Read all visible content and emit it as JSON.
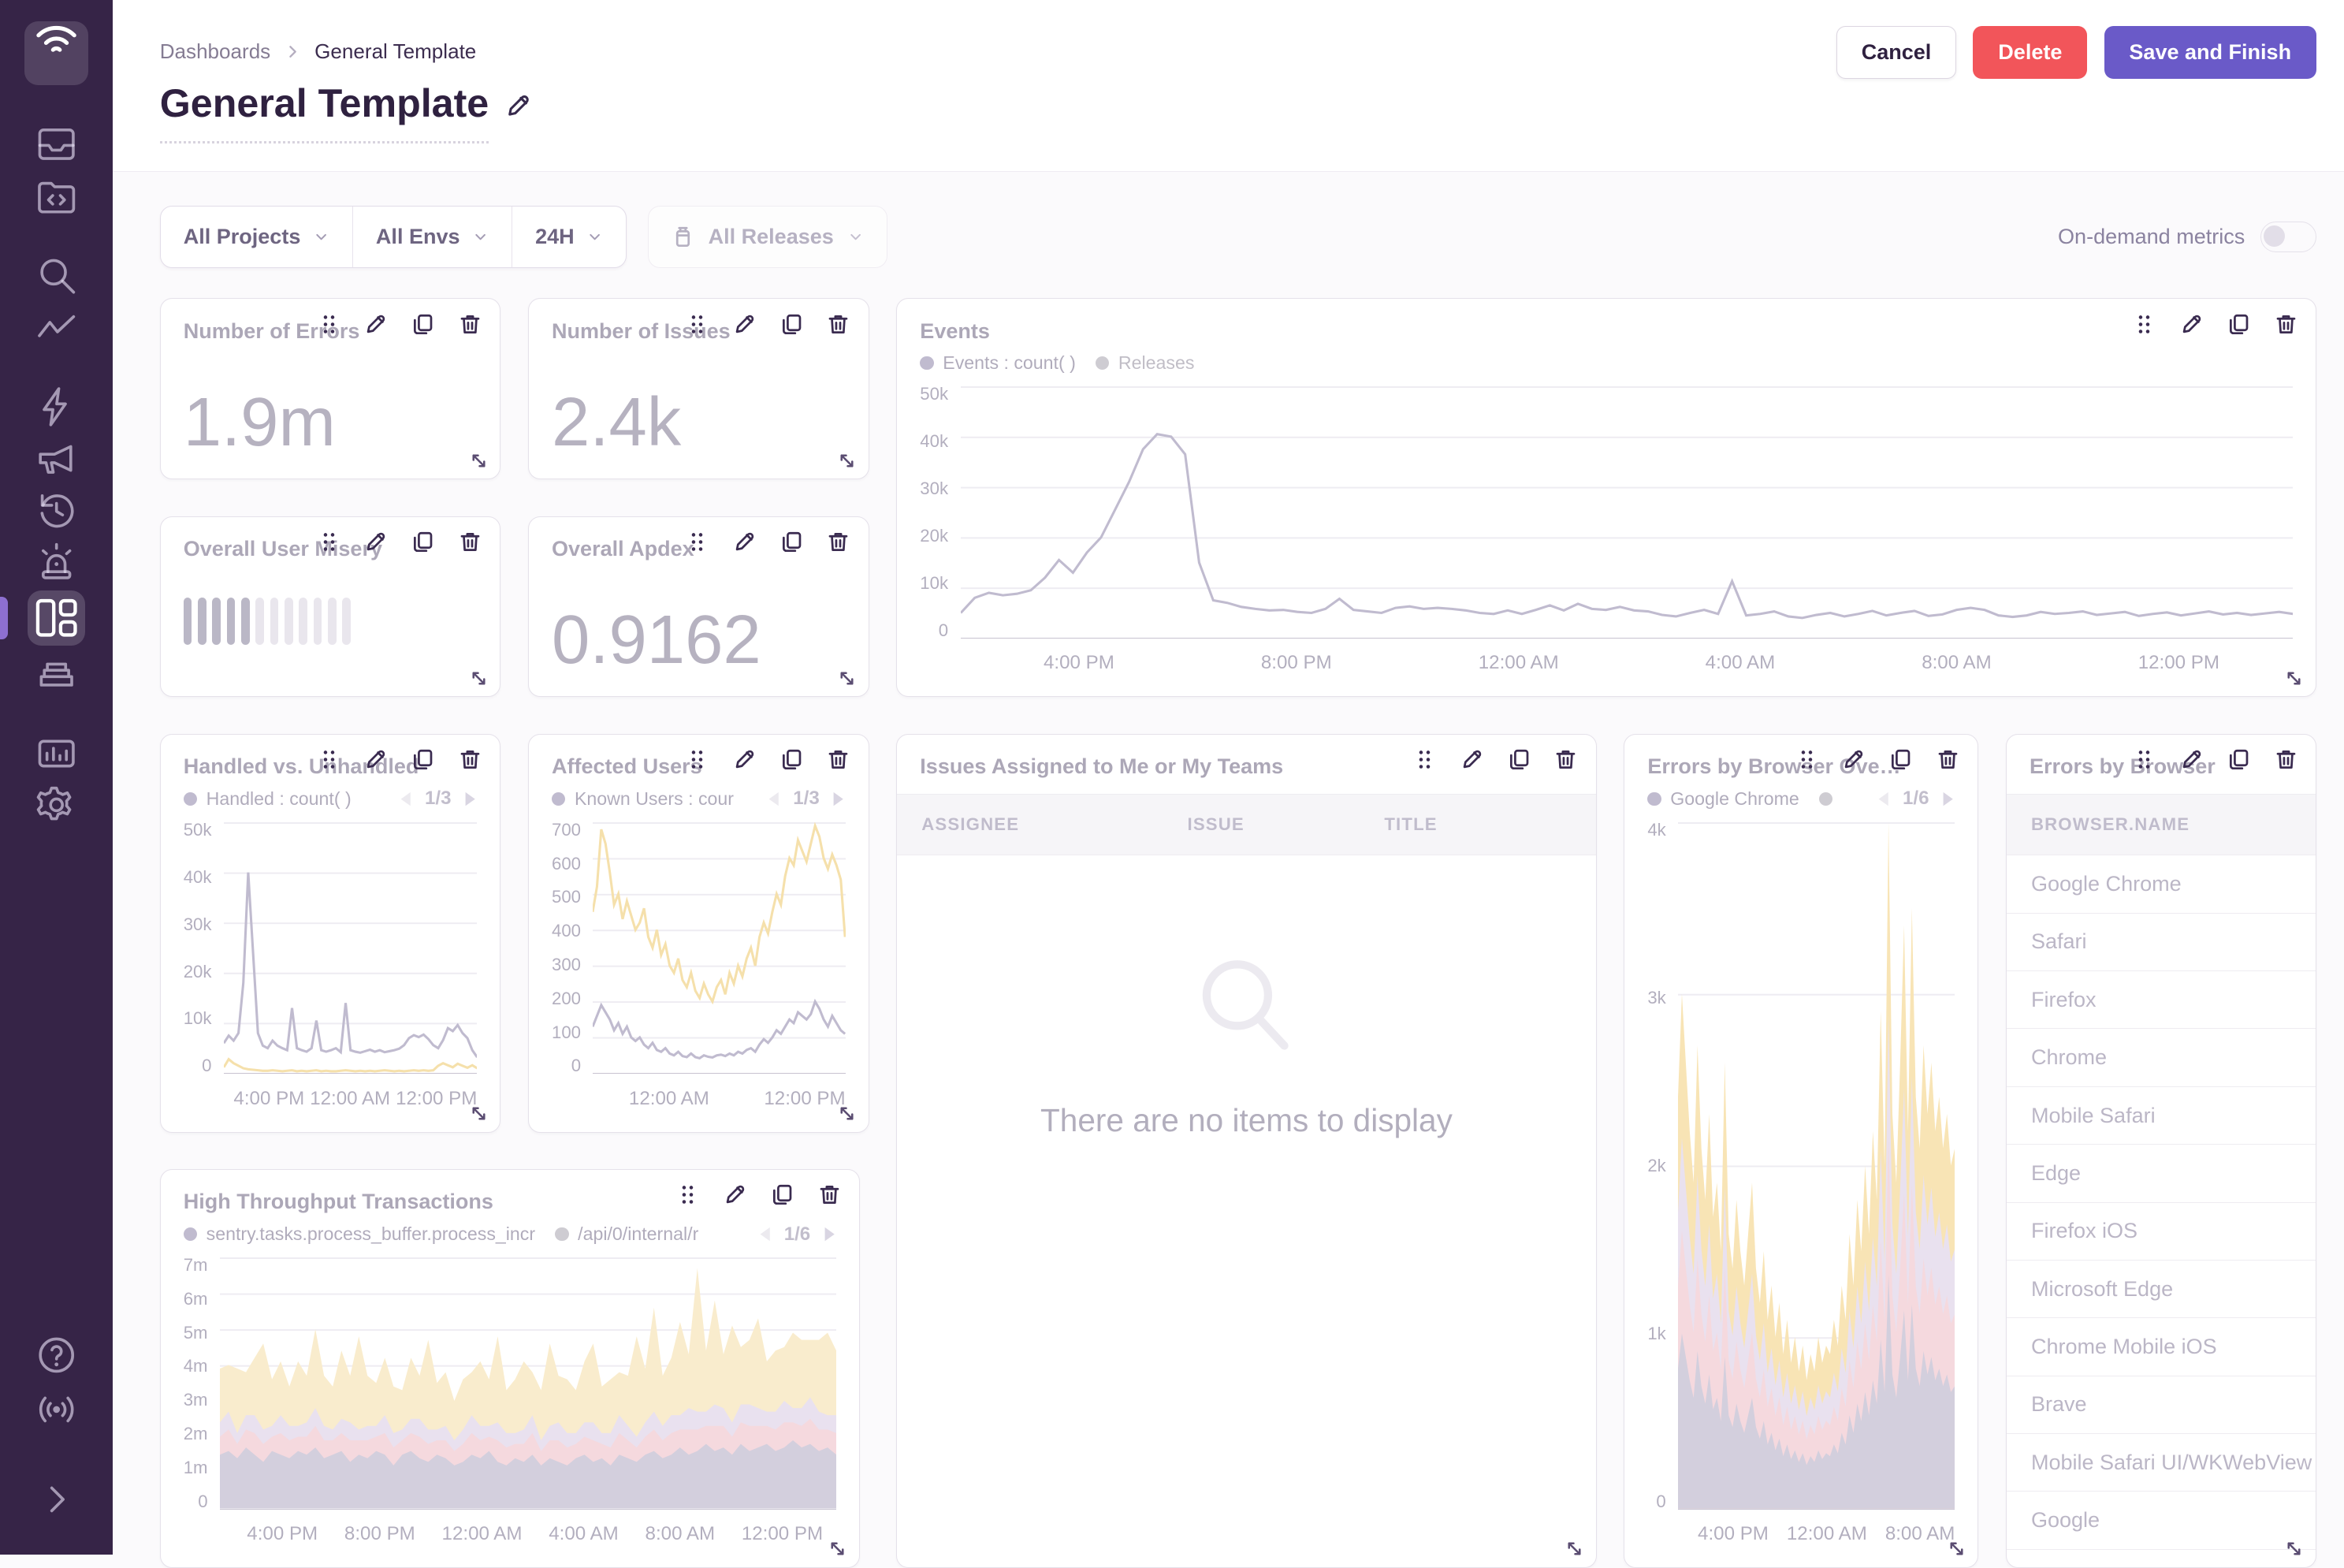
{
  "app": {
    "name": "Sentry"
  },
  "colors": {
    "sidebar_bg": "#362447",
    "accent_purple": "#6a5ac8",
    "danger_red": "#f2555a",
    "chart_purple": "#6c5f8f",
    "chart_yellow": "#e9b63a",
    "chart_pink": "#e9a5b2",
    "chart_lavender": "#cbb9da",
    "chart_gray": "#988eaf"
  },
  "sidebar": {
    "icons": [
      "sentry-logo",
      "issues",
      "projects",
      "explore-search",
      "traces",
      "lightning",
      "feedback-megaphone",
      "replays-history",
      "alerts-siren",
      "dashboards",
      "releases-stack",
      "stats",
      "settings-gear",
      "help",
      "broadcast",
      "collapse"
    ],
    "active": "dashboards"
  },
  "header": {
    "breadcrumb": {
      "root": "Dashboards",
      "current": "General Template"
    },
    "title": "General Template",
    "buttons": {
      "cancel": "Cancel",
      "delete": "Delete",
      "save": "Save and Finish"
    }
  },
  "filters": {
    "projects": "All Projects",
    "environments": "All Envs",
    "time_range": "24H",
    "releases": "All Releases",
    "on_demand_label": "On-demand metrics",
    "on_demand_enabled": false
  },
  "widgets": {
    "number_of_errors": {
      "title": "Number of Errors",
      "value": "1.9m"
    },
    "number_of_issues": {
      "title": "Number of Issues",
      "value": "2.4k"
    },
    "events": {
      "title": "Events",
      "legend": [
        {
          "label": "Events : count( )",
          "color": "#6c5f8f"
        },
        {
          "label": "Releases",
          "color": "#8d8796"
        }
      ]
    },
    "overall_user_misery": {
      "title": "Overall User Misery"
    },
    "overall_apdex": {
      "title": "Overall Apdex",
      "value": "0.9162"
    },
    "handled_vs_unhandled": {
      "title": "Handled vs. Unhandled",
      "legend": [
        {
          "label": "Handled : count( )",
          "color": "#6c5f8f"
        }
      ],
      "pagination": "1/3"
    },
    "affected_users": {
      "title": "Affected Users",
      "legend": [
        {
          "label": "Known Users : cour",
          "color": "#6c5f8f"
        }
      ],
      "pagination": "1/3"
    },
    "issues_assigned": {
      "title": "Issues Assigned to Me or My Teams",
      "columns": [
        "ASSIGNEE",
        "ISSUE",
        "TITLE"
      ],
      "empty_message": "There are no items to display"
    },
    "errors_by_browser_overlay": {
      "title": "Errors by Browser Ove…",
      "legend": [
        {
          "label": "Google Chrome",
          "color": "#6c5f8f"
        },
        {
          "label": "",
          "color": "#8d8796"
        }
      ],
      "pagination": "1/6"
    },
    "errors_by_browser_table": {
      "title": "Errors by Browser",
      "column_header": "BROWSER.NAME",
      "rows": [
        "Google Chrome",
        "Safari",
        "Firefox",
        "Chrome",
        "Mobile Safari",
        "Edge",
        "Firefox iOS",
        "Microsoft Edge",
        "Chrome Mobile iOS",
        "Brave",
        "Mobile Safari UI/WKWebView",
        "Google"
      ]
    },
    "high_throughput": {
      "title": "High Throughput Transactions",
      "legend": [
        {
          "label": "sentry.tasks.process_buffer.process_incr",
          "color": "#6c5f8f"
        },
        {
          "label": "/api/0/internal/r",
          "color": "#8d8796"
        }
      ],
      "pagination": "1/6"
    }
  },
  "chart_data": [
    {
      "id": "events",
      "type": "line",
      "title": "Events",
      "xlabel": "",
      "ylabel": "",
      "unit": "thousands (k)",
      "ylim": [
        0,
        50
      ],
      "grid": "horizontal",
      "legend_position": "top-left",
      "yticks": [
        "0",
        "10k",
        "20k",
        "30k",
        "40k",
        "50k"
      ],
      "xticks": [
        "4:00 PM",
        "8:00 PM",
        "12:00 AM",
        "4:00 AM",
        "8:00 AM",
        "12:00 PM"
      ],
      "series": [
        {
          "name": "Events : count()",
          "color": "#6c5f8f",
          "values": [
            5,
            8,
            9,
            8.5,
            8.8,
            9.5,
            12,
            15.5,
            13,
            17,
            20,
            25.5,
            31,
            37.5,
            40.5,
            40,
            36.5,
            15,
            7.5,
            7,
            6.2,
            5.8,
            5.5,
            5.6,
            5.2,
            5,
            5.8,
            7.8,
            5.6,
            5.3,
            5,
            6,
            6.3,
            5.8,
            6,
            5.8,
            5.5,
            5,
            4.8,
            5.5,
            4.8,
            5.6,
            6.5,
            5.5,
            6.8,
            5.8,
            5.6,
            6.2,
            5.5,
            5.3,
            4.6,
            4.3,
            5,
            5.6,
            4.8,
            11.3,
            4.5,
            4.8,
            5.3,
            4.3,
            4,
            4.6,
            5,
            4.3,
            4.8,
            5.4,
            4.5,
            5,
            5.4,
            4.4,
            4.7,
            5.6,
            6,
            5.6,
            4.5,
            4.2,
            4.5,
            5.2,
            4.8,
            5,
            5.3,
            4.6,
            4.9,
            5.2,
            4.4,
            4.8,
            5.1,
            4.5,
            4.9,
            5.3,
            4.7,
            5,
            4.6,
            4.9,
            5.2,
            4.8
          ]
        }
      ]
    },
    {
      "id": "handled",
      "type": "line",
      "title": "Handled vs. Unhandled",
      "xlabel": "",
      "ylabel": "",
      "unit": "thousands (k)",
      "ylim": [
        0,
        50
      ],
      "grid": "horizontal",
      "yticks": [
        "0",
        "10k",
        "20k",
        "30k",
        "40k",
        "50k"
      ],
      "xticks": [
        "4:00 PM",
        "12:00 AM",
        "12:00 PM"
      ],
      "series": [
        {
          "name": "Handled : count()",
          "color": "#6c5f8f",
          "values": [
            6,
            7.5,
            6.5,
            8,
            18,
            40,
            24,
            8,
            5.5,
            5,
            6.5,
            5.5,
            5,
            4.6,
            13,
            5,
            4.6,
            4.3,
            5,
            10.5,
            4.6,
            4.3,
            4.6,
            5,
            4.2,
            14,
            4.6,
            4.3,
            4.1,
            4.4,
            4.7,
            4.3,
            4.6,
            4.2,
            4.4,
            4.6,
            4.9,
            5.6,
            7,
            7.6,
            7.2,
            7.7,
            6.8,
            5.6,
            5,
            6.6,
            9,
            8.4,
            9.6,
            8,
            7,
            4.6,
            3.2
          ]
        },
        {
          "name": "",
          "color": "#e9b63a",
          "values": [
            1.2,
            2.8,
            2,
            1.5,
            1,
            0.8,
            0.7,
            0.6,
            0.5,
            0.5,
            0.6,
            0.5,
            0.4,
            0.5,
            0.6,
            0.4,
            0.5,
            0.4,
            0.5,
            0.6,
            0.4,
            0.5,
            0.4,
            0.4,
            0.5,
            0.6,
            0.5,
            0.4,
            0.5,
            0.4,
            0.5,
            0.4,
            0.5,
            0.6,
            0.5,
            0.4,
            0.5,
            0.4,
            0.5,
            0.6,
            0.5,
            0.6,
            0.5,
            0.6,
            1.5,
            2,
            1.6,
            1.2,
            1.9,
            1.5,
            1.1,
            1.6,
            1
          ]
        }
      ]
    },
    {
      "id": "affected",
      "type": "line",
      "title": "Affected Users",
      "xlabel": "",
      "ylabel": "",
      "unit": "users",
      "ylim": [
        0,
        700
      ],
      "grid": "horizontal",
      "yticks": [
        "0",
        "100",
        "200",
        "300",
        "400",
        "500",
        "600",
        "700"
      ],
      "xticks": [
        "12:00 AM",
        "12:00 PM"
      ],
      "series": [
        {
          "name": "",
          "color": "#e9b63a",
          "values": [
            450,
            520,
            680,
            640,
            560,
            470,
            500,
            430,
            480,
            440,
            400,
            420,
            460,
            380,
            350,
            400,
            330,
            360,
            300,
            280,
            320,
            260,
            240,
            280,
            230,
            210,
            250,
            220,
            200,
            240,
            260,
            220,
            280,
            250,
            300,
            270,
            320,
            350,
            300,
            380,
            420,
            390,
            450,
            500,
            470,
            550,
            600,
            580,
            650,
            620,
            590,
            640,
            690,
            660,
            600,
            570,
            610,
            580,
            540,
            380
          ]
        },
        {
          "name": "Known Users : cour",
          "color": "#6c5f8f",
          "values": [
            130,
            160,
            190,
            170,
            150,
            120,
            140,
            110,
            130,
            100,
            90,
            100,
            80,
            70,
            85,
            65,
            60,
            70,
            55,
            50,
            60,
            48,
            45,
            55,
            45,
            42,
            50,
            46,
            44,
            50,
            52,
            48,
            55,
            50,
            60,
            55,
            65,
            70,
            60,
            80,
            95,
            85,
            100,
            120,
            110,
            130,
            150,
            140,
            170,
            160,
            150,
            165,
            200,
            180,
            150,
            130,
            160,
            140,
            120,
            110
          ]
        }
      ]
    },
    {
      "id": "overlay",
      "type": "stacked-area",
      "title": "Errors by Browser Ove…",
      "xlabel": "",
      "ylabel": "",
      "unit": "thousands (k)",
      "ylim": [
        0,
        4
      ],
      "grid": "horizontal",
      "yticks": [
        "0",
        "1k",
        "2k",
        "3k",
        "4k"
      ],
      "xticks": [
        "4:00 PM",
        "12:00 AM",
        "8:00 AM"
      ],
      "totals": [
        2.4,
        3.0,
        2.6,
        2.2,
        1.9,
        2.7,
        2.1,
        1.8,
        2.3,
        1.7,
        1.9,
        1.5,
        2.6,
        1.6,
        1.4,
        1.8,
        1.5,
        1.3,
        1.6,
        1.9,
        1.4,
        1.2,
        1.5,
        1.1,
        1.3,
        1.0,
        1.2,
        0.9,
        1.1,
        0.85,
        1.0,
        0.8,
        0.95,
        0.75,
        0.9,
        0.8,
        1.0,
        0.85,
        0.95,
        0.9,
        1.1,
        0.95,
        1.3,
        1.1,
        1.6,
        1.3,
        1.8,
        1.5,
        2.0,
        1.6,
        2.2,
        1.8,
        2.9,
        2.0,
        4.0,
        2.3,
        1.9,
        2.6,
        3.4,
        2.2,
        3.5,
        2.4,
        2.1,
        2.7,
        2.3,
        2.6,
        2.2,
        2.4,
        2.1,
        2.3,
        2.0,
        2.1
      ],
      "layers": [
        {
          "name": "Google Chrome",
          "fraction": 0.34,
          "color": "#988eaf"
        },
        {
          "name": "",
          "fraction": 0.2,
          "color": "#e9a5b2"
        },
        {
          "name": "",
          "fraction": 0.18,
          "color": "#cbb9da"
        },
        {
          "name": "",
          "fraction": 0.28,
          "color": "#f0c050"
        }
      ]
    },
    {
      "id": "highthr",
      "type": "stacked-area",
      "title": "High Throughput Transactions",
      "xlabel": "",
      "ylabel": "",
      "unit": "millions (m)",
      "ylim": [
        0,
        7
      ],
      "grid": "horizontal",
      "yticks": [
        "0",
        "1m",
        "2m",
        "3m",
        "4m",
        "5m",
        "6m",
        "7m"
      ],
      "xticks": [
        "4:00 PM",
        "8:00 PM",
        "12:00 AM",
        "4:00 AM",
        "8:00 AM",
        "12:00 PM"
      ],
      "series": [
        {
          "name": "sentry.tasks.process_buffer.process_incr",
          "color": "#988eaf",
          "values": [
            1.5,
            1.6,
            1.4,
            1.7,
            1.5,
            1.3,
            1.6,
            1.5,
            1.4,
            1.6,
            1.5,
            1.7,
            1.4,
            1.5,
            1.6,
            1.3,
            1.5,
            1.4,
            1.6,
            1.5,
            1.2,
            1.5,
            1.6,
            1.4,
            1.3,
            1.5,
            1.4,
            1.2,
            1.3,
            1.5,
            1.4,
            1.6,
            1.3,
            1.2,
            1.4,
            1.3,
            1.5,
            1.2,
            1.4,
            1.3,
            1.2,
            1.4,
            1.5,
            1.3,
            1.4,
            1.2,
            1.5,
            1.4,
            1.3,
            1.5,
            1.6,
            1.4,
            1.5,
            1.7,
            1.5,
            1.6,
            1.8,
            1.6,
            1.7,
            1.5,
            1.8,
            1.6,
            1.7,
            1.8,
            1.6,
            1.7,
            1.9,
            1.7,
            1.8,
            1.6,
            1.7,
            1.5
          ]
        },
        {
          "name": "/api/0/internal/r",
          "color": "#e9a5b2",
          "values": [
            0.5,
            0.6,
            0.4,
            0.5,
            0.6,
            0.5,
            0.4,
            0.6,
            0.5,
            0.4,
            0.5,
            0.6,
            0.5,
            0.4,
            0.5,
            0.6,
            0.4,
            0.5,
            0.4,
            0.6,
            0.5,
            0.4,
            0.5,
            0.6,
            0.5,
            0.4,
            0.5,
            0.4,
            0.5,
            0.6,
            0.5,
            0.4,
            0.6,
            0.5,
            0.4,
            0.5,
            0.6,
            0.4,
            0.5,
            0.6,
            0.5,
            0.4,
            0.5,
            0.6,
            0.4,
            0.5,
            0.6,
            0.5,
            0.4,
            0.5,
            0.6,
            0.5,
            0.6,
            0.5,
            0.7,
            0.6,
            0.5,
            0.7,
            0.6,
            0.5,
            0.6,
            0.7,
            0.6,
            0.5,
            0.6,
            0.7,
            0.5,
            0.6,
            0.7,
            0.6,
            0.5,
            0.6
          ]
        },
        {
          "name": "",
          "color": "#cbb9da",
          "values": [
            0.4,
            0.5,
            0.3,
            0.4,
            0.5,
            0.4,
            0.3,
            0.5,
            0.4,
            0.3,
            0.4,
            0.5,
            0.4,
            0.3,
            0.4,
            0.5,
            0.3,
            0.4,
            0.3,
            0.5,
            0.4,
            0.3,
            0.4,
            0.5,
            0.4,
            0.3,
            0.4,
            0.3,
            0.4,
            0.5,
            0.4,
            0.3,
            0.5,
            0.4,
            0.3,
            0.4,
            0.5,
            0.3,
            0.4,
            0.5,
            0.4,
            0.3,
            0.4,
            0.5,
            0.3,
            0.4,
            0.5,
            0.4,
            0.3,
            0.4,
            0.5,
            0.4,
            0.5,
            0.4,
            0.6,
            0.5,
            0.4,
            0.6,
            0.5,
            0.4,
            0.5,
            0.6,
            0.5,
            0.4,
            0.5,
            0.6,
            0.4,
            0.5,
            0.6,
            0.5,
            0.4,
            0.5
          ]
        },
        {
          "name": "",
          "color": "#f3d48a",
          "values": [
            1.5,
            1.3,
            1.8,
            1.2,
            1.6,
            2.4,
            1.3,
            1.5,
            1.1,
            1.8,
            1.3,
            2.2,
            1.4,
            1.2,
            1.9,
            1.3,
            2.6,
            1.4,
            1.2,
            1.6,
            1.3,
            1.1,
            1.7,
            1.2,
            2.5,
            1.3,
            1.5,
            1.1,
            1.4,
            1.2,
            1.8,
            1.3,
            2.4,
            1.2,
            1.5,
            1.9,
            1.2,
            1.4,
            2.3,
            1.3,
            1.5,
            1.2,
            1.7,
            2.2,
            1.3,
            1.5,
            1.2,
            1.4,
            2.8,
            1.5,
            2.9,
            1.4,
            1.6,
            2.6,
            1.5,
            4.0,
            1.7,
            2.9,
            1.5,
            2.7,
            1.6,
            1.8,
            2.5,
            1.4,
            1.7,
            1.5,
            2.1,
            1.9,
            1.6,
            2.0,
            2.3,
            1.8
          ]
        }
      ]
    },
    {
      "id": "misery",
      "type": "bar-ticks",
      "title": "Overall User Misery",
      "bars_total": 12,
      "bars_filled": 5
    }
  ]
}
